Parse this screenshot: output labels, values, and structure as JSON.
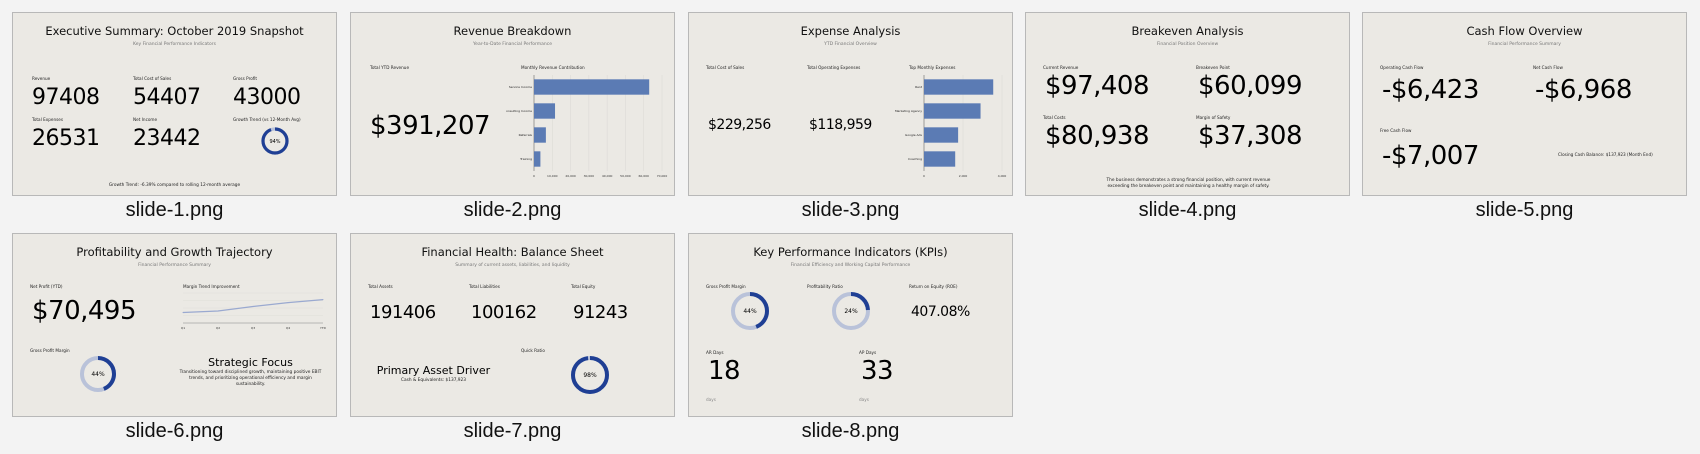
{
  "colors": {
    "slide_bg": "#ebe9e4",
    "accent_blue": "#1f3f94",
    "ring_light": "#b9c2d9",
    "bar_blue": "#5b7bb4"
  },
  "slides": [
    {
      "caption": "slide-1.png",
      "title": "Executive Summary: October 2019 Snapshot",
      "subtitle": "Key Financial Performance Indicators",
      "metrics": [
        {
          "label": "Revenue",
          "value": "97408"
        },
        {
          "label": "Total Cost of Sales",
          "value": "54407"
        },
        {
          "label": "Gross Profit",
          "value": "43000"
        },
        {
          "label": "Total Expenses",
          "value": "26531"
        },
        {
          "label": "Net Income",
          "value": "23442"
        }
      ],
      "gauge": {
        "label": "Growth Trend (vs 12-Month Avg)",
        "value": "94%",
        "percent": 94
      },
      "footer": "Growth Trend: -6.39% compared to rolling 12-month average"
    },
    {
      "caption": "slide-2.png",
      "title": "Revenue Breakdown",
      "subtitle": "Year-to-Date Financial Performance",
      "total_label": "Total YTD Revenue",
      "total_value": "$391,207",
      "chart_title": "Monthly Revenue Contribution",
      "chart_data": {
        "type": "bar",
        "orientation": "horizontal",
        "categories": [
          "Service Income",
          "Consulting Income",
          "Referrals",
          "Training"
        ],
        "values": [
          63000,
          11500,
          6500,
          3500
        ],
        "xlim": [
          0,
          70000
        ],
        "ticks": [
          "0",
          "10,000",
          "20,000",
          "30,000",
          "40,000",
          "50,000",
          "60,000",
          "70,000"
        ]
      }
    },
    {
      "caption": "slide-3.png",
      "title": "Expense Analysis",
      "subtitle": "YTD Financial Overview",
      "metrics": [
        {
          "label": "Total Cost of Sales",
          "value": "$229,256"
        },
        {
          "label": "Total Operating Expenses",
          "value": "$118,959"
        }
      ],
      "chart_title": "Top Monthly Expenses",
      "chart_data": {
        "type": "bar",
        "orientation": "horizontal",
        "categories": [
          "Rent",
          "Marketing Agency",
          "Google Ads",
          "Coaching"
        ],
        "values": [
          3550,
          2900,
          1750,
          1600
        ],
        "xlim": [
          0,
          4000
        ],
        "ticks": [
          "0",
          "2,000",
          "4,000"
        ]
      }
    },
    {
      "caption": "slide-4.png",
      "title": "Breakeven Analysis",
      "subtitle": "Financial Position Overview",
      "metrics": [
        {
          "label": "Current Revenue",
          "value": "$97,408"
        },
        {
          "label": "Breakeven Point",
          "value": "$60,099"
        },
        {
          "label": "Total Costs",
          "value": "$80,938"
        },
        {
          "label": "Margin of Safety",
          "value": "$37,308"
        }
      ],
      "footer": "The business demonstrates a strong financial position, with current revenue exceeding the breakeven point and maintaining a healthy margin of safety."
    },
    {
      "caption": "slide-5.png",
      "title": "Cash Flow Overview",
      "subtitle": "Financial Performance Summary",
      "metrics": [
        {
          "label": "Operating Cash Flow",
          "value": "-$6,423"
        },
        {
          "label": "Net Cash Flow",
          "value": "-$6,968"
        },
        {
          "label": "Free Cash Flow",
          "value": "-$7,007"
        }
      ],
      "closing_note": "Closing Cash Balance: $137,923 (Month End)"
    },
    {
      "caption": "slide-6.png",
      "title": "Profitability and Growth Trajectory",
      "subtitle": "Financial Performance Summary",
      "net_profit_label": "Net Profit (YTD)",
      "net_profit_value": "$70,495",
      "chart_title": "Margin Trend Improvement",
      "chart_data": {
        "type": "line",
        "categories": [
          "Q1",
          "Q2",
          "Q3",
          "Q4",
          "YTD"
        ],
        "values": [
          0.35,
          0.4,
          0.55,
          0.68,
          0.78
        ],
        "ylim": [
          0,
          1
        ]
      },
      "gauge": {
        "label": "Gross Profit Margin",
        "value": "44%",
        "percent": 44
      },
      "focus_title": "Strategic Focus",
      "focus_text": "Transitioning toward disciplined growth, maintaining positive EBIT trends, and prioritizing operational efficiency and margin sustainability."
    },
    {
      "caption": "slide-7.png",
      "title": "Financial Health: Balance Sheet",
      "subtitle": "Summary of current assets, liabilities, and liquidity",
      "metrics": [
        {
          "label": "Total Assets",
          "value": "191406"
        },
        {
          "label": "Total Liabilities",
          "value": "100162"
        },
        {
          "label": "Total Equity",
          "value": "91243"
        }
      ],
      "driver_title": "Primary Asset Driver",
      "driver_text": "Cash & Equivalents: $137,923",
      "gauge": {
        "label": "Quick Ratio",
        "value": "98%",
        "percent": 98
      }
    },
    {
      "caption": "slide-8.png",
      "title": "Key Performance Indicators (KPIs)",
      "subtitle": "Financial Efficiency and Working Capital Performance",
      "gauges": [
        {
          "label": "Gross Profit Margin",
          "value": "44%",
          "percent": 44
        },
        {
          "label": "Profitability Ratio",
          "value": "24%",
          "percent": 24
        }
      ],
      "roe": {
        "label": "Return on Equity (ROE)",
        "value": "407.08%"
      },
      "days": [
        {
          "label": "AR Days",
          "value": "18",
          "unit": "days"
        },
        {
          "label": "AP Days",
          "value": "33",
          "unit": "days"
        }
      ]
    }
  ]
}
